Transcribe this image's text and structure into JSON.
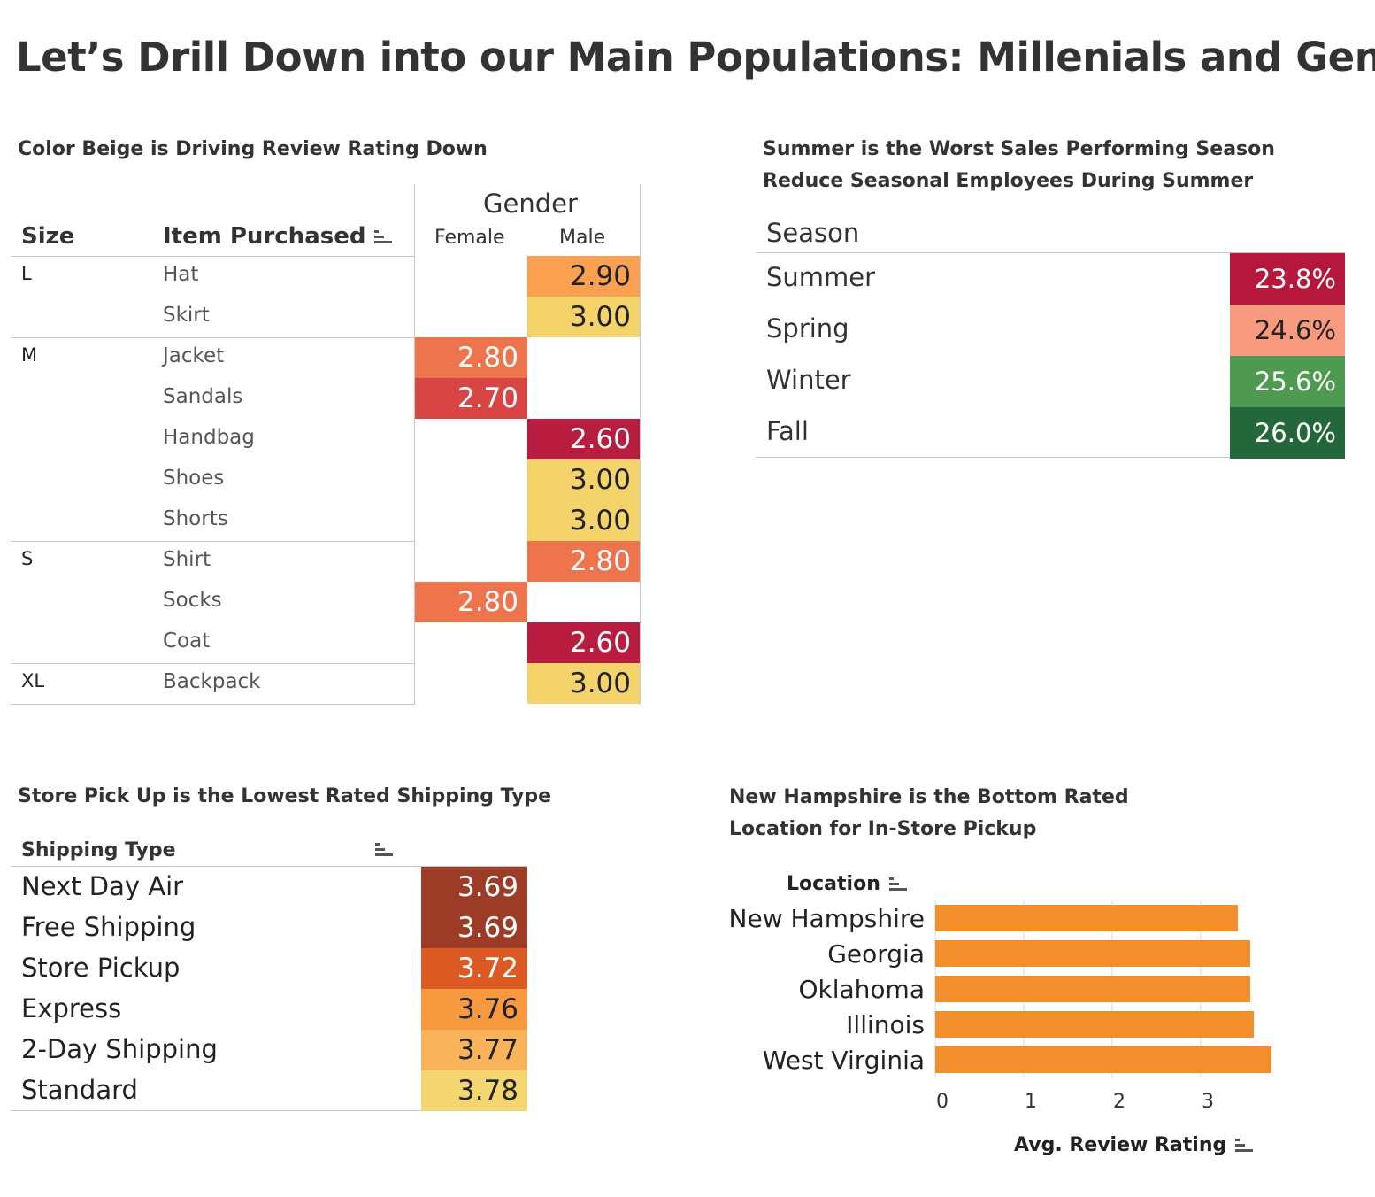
{
  "title": "Let’s Drill Down into our Main Populations: Millenials and Gen X",
  "chart_data": [
    {
      "type": "heatmap",
      "title": "Color Beige is Driving Review Rating Down",
      "row_headers": [
        "Size",
        "Item Purchased"
      ],
      "column_group": "Gender",
      "columns": [
        "Female",
        "Male"
      ],
      "rows": [
        {
          "size": "L",
          "item": "Hat",
          "female": null,
          "male": "2.90",
          "female_color": null,
          "male_color": "#f9a150"
        },
        {
          "size": "",
          "item": "Skirt",
          "female": null,
          "male": "3.00",
          "female_color": null,
          "male_color": "#f4d36b"
        },
        {
          "size": "M",
          "item": "Jacket",
          "female": "2.80",
          "male": null,
          "female_color": "#ee744d",
          "male_color": null
        },
        {
          "size": "",
          "item": "Sandals",
          "female": "2.70",
          "male": null,
          "female_color": "#d84545",
          "male_color": null
        },
        {
          "size": "",
          "item": "Handbag",
          "female": null,
          "male": "2.60",
          "female_color": null,
          "male_color": "#b81c3f"
        },
        {
          "size": "",
          "item": "Shoes",
          "female": null,
          "male": "3.00",
          "female_color": null,
          "male_color": "#f4d36b"
        },
        {
          "size": "",
          "item": "Shorts",
          "female": null,
          "male": "3.00",
          "female_color": null,
          "male_color": "#f4d36b"
        },
        {
          "size": "S",
          "item": "Shirt",
          "female": null,
          "male": "2.80",
          "female_color": null,
          "male_color": "#ee744d"
        },
        {
          "size": "",
          "item": "Socks",
          "female": "2.80",
          "male": null,
          "female_color": "#ee744d",
          "male_color": null
        },
        {
          "size": "",
          "item": "Coat",
          "female": null,
          "male": "2.60",
          "female_color": null,
          "male_color": "#b81c3f"
        },
        {
          "size": "XL",
          "item": "Backpack",
          "female": null,
          "male": "3.00",
          "female_color": null,
          "male_color": "#f4d36b"
        }
      ]
    },
    {
      "type": "table",
      "title": "Summer is the Worst Sales Performing Season",
      "subtitle": "Reduce Seasonal Employees  During Summer",
      "row_header": "Season",
      "rows": [
        {
          "label": "Summer",
          "value": "23.8%",
          "color": "#b5173d",
          "text_color": "#ffffff"
        },
        {
          "label": "Spring",
          "value": "24.6%",
          "color": "#f89a7f",
          "text_color": "#222222"
        },
        {
          "label": "Winter",
          "value": "25.6%",
          "color": "#4e9a51",
          "text_color": "#ffffff"
        },
        {
          "label": "Fall",
          "value": "26.0%",
          "color": "#24673b",
          "text_color": "#ffffff"
        }
      ]
    },
    {
      "type": "table",
      "title": "Store Pick Up is the Lowest Rated Shipping Type",
      "row_header": "Shipping Type",
      "rows": [
        {
          "label": "Next Day Air",
          "value": "3.69",
          "color": "#9c3b26",
          "text_color": "#ffffff"
        },
        {
          "label": "Free Shipping",
          "value": "3.69",
          "color": "#9c3b26",
          "text_color": "#ffffff"
        },
        {
          "label": "Store Pickup",
          "value": "3.72",
          "color": "#dc5a24",
          "text_color": "#ffffff"
        },
        {
          "label": "Express",
          "value": "3.76",
          "color": "#f7993f",
          "text_color": "#222222"
        },
        {
          "label": "2-Day Shipping",
          "value": "3.77",
          "color": "#f8b35b",
          "text_color": "#222222"
        },
        {
          "label": "Standard",
          "value": "3.78",
          "color": "#f4d670",
          "text_color": "#222222"
        }
      ]
    },
    {
      "type": "bar",
      "orientation": "horizontal",
      "title": "New Hampshire is the Bottom Rated",
      "subtitle": "Location for In-Store Pickup",
      "ylabel": "Location",
      "xlabel": "Avg. Review Rating",
      "categories": [
        "New Hampshire",
        "Georgia",
        "Oklahoma",
        "Illinois",
        "West Virginia"
      ],
      "values": [
        3.42,
        3.56,
        3.56,
        3.6,
        3.8
      ],
      "xlim": [
        0,
        4
      ],
      "ticks": [
        "0",
        "1",
        "2",
        "3"
      ],
      "bar_color": "#f28e2b",
      "grid": true
    }
  ]
}
